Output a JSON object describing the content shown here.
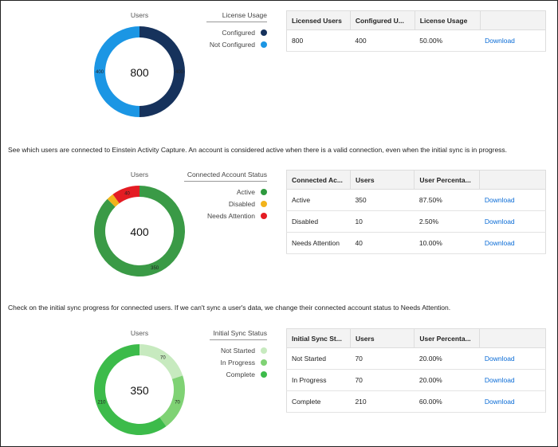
{
  "sections": [
    {
      "chart_title": "Users",
      "total": "800",
      "legend_title": "License Usage",
      "legend": [
        {
          "label": "Configured",
          "color": "#16325c"
        },
        {
          "label": "Not Configured",
          "color": "#1b96e4"
        }
      ],
      "donut": {
        "segments": [
          {
            "value": 400,
            "color": "#16325c",
            "label": "400"
          },
          {
            "value": 400,
            "color": "#1b96e4",
            "label": "400"
          }
        ]
      },
      "table": {
        "headers": [
          "Licensed Users",
          "Configured U...",
          "License Usage",
          ""
        ],
        "rows": [
          [
            "800",
            "400",
            "50.00%",
            "Download"
          ]
        ]
      }
    },
    {
      "description": "See which users are connected to Einstein Activity Capture. An account is considered active when there is a valid connection, even when the initial sync is in progress.",
      "chart_title": "Users",
      "total": "400",
      "legend_title": "Connected Account Status",
      "legend": [
        {
          "label": "Active",
          "color": "#2e9a3e"
        },
        {
          "label": "Disabled",
          "color": "#f2b31a"
        },
        {
          "label": "Needs Attention",
          "color": "#e41c23"
        }
      ],
      "donut": {
        "segments": [
          {
            "value": 350,
            "color": "#3a9a46",
            "label": "350"
          },
          {
            "value": 10,
            "color": "#f2b31a",
            "label": ""
          },
          {
            "value": 40,
            "color": "#e41c23",
            "label": "40"
          }
        ]
      },
      "table": {
        "headers": [
          "Connected Ac...",
          "Users",
          "User Percenta...",
          ""
        ],
        "rows": [
          [
            "Active",
            "350",
            "87.50%",
            "Download"
          ],
          [
            "Disabled",
            "10",
            "2.50%",
            "Download"
          ],
          [
            "Needs Attention",
            "40",
            "10.00%",
            "Download"
          ]
        ]
      }
    },
    {
      "description": "Check on the initial sync progress for connected users. If we can't sync a user's data, we change their connected account status to Needs Attention.",
      "chart_title": "Users",
      "total": "350",
      "legend_title": "Initial Sync Status",
      "legend": [
        {
          "label": "Not Started",
          "color": "#c7eabf"
        },
        {
          "label": "In Progress",
          "color": "#7fd274"
        },
        {
          "label": "Complete",
          "color": "#3cbb4a"
        }
      ],
      "donut": {
        "segments": [
          {
            "value": 70,
            "color": "#c7eabf",
            "label": "70"
          },
          {
            "value": 70,
            "color": "#7fd274",
            "label": "70"
          },
          {
            "value": 210,
            "color": "#3cbb4a",
            "label": "210"
          }
        ]
      },
      "table": {
        "headers": [
          "Initial Sync St...",
          "Users",
          "User Percenta...",
          ""
        ],
        "rows": [
          [
            "Not Started",
            "70",
            "20.00%",
            "Download"
          ],
          [
            "In Progress",
            "70",
            "20.00%",
            "Download"
          ],
          [
            "Complete",
            "210",
            "60.00%",
            "Download"
          ]
        ]
      }
    }
  ]
}
